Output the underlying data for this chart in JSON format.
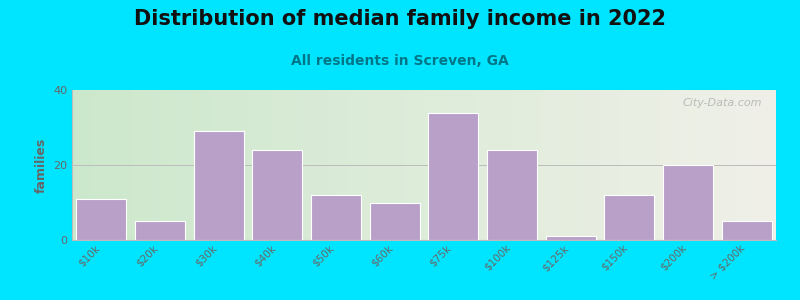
{
  "title": "Distribution of median family income in 2022",
  "subtitle": "All residents in Screven, GA",
  "ylabel": "families",
  "categories": [
    "$10k",
    "$20k",
    "$30k",
    "$40k",
    "$50k",
    "$60k",
    "$75k",
    "$100k",
    "$125k",
    "$150k",
    "$200k",
    "> $200k"
  ],
  "values": [
    11,
    5,
    29,
    24,
    12,
    10,
    34,
    24,
    1,
    12,
    20,
    5
  ],
  "bar_color": "#b8a0c8",
  "bar_edge_color": "#ffffff",
  "ylim": [
    0,
    40
  ],
  "yticks": [
    0,
    20,
    40
  ],
  "title_fontsize": 15,
  "subtitle_fontsize": 10,
  "ylabel_fontsize": 9,
  "background_outer": "#00e5ff",
  "grad_left": "#cce8cc",
  "grad_right": "#f0f0e8",
  "watermark": "City-Data.com",
  "title_color": "#111111",
  "subtitle_color": "#007788",
  "tick_color": "#666666",
  "grid_color": "#bbbbbb"
}
